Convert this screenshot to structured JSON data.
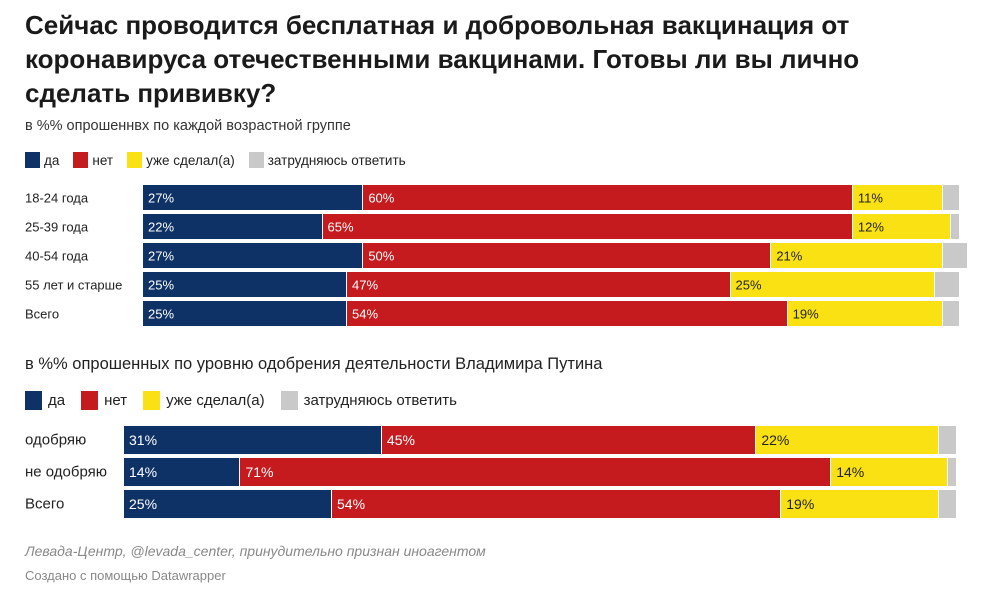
{
  "title": "Сейчас проводится бесплатная и добровольная вакцинация от коронавируса отечественными вакцинами. Готовы ли вы лично сделать прививку?",
  "colors": {
    "yes": "#0f3266",
    "no": "#c51b1e",
    "done": "#fae114",
    "unsure": "#c9c9c9"
  },
  "legend": [
    {
      "key": "yes",
      "label": "да"
    },
    {
      "key": "no",
      "label": "нет"
    },
    {
      "key": "done",
      "label": "уже сделал(а)"
    },
    {
      "key": "unsure",
      "label": "затрудняюсь ответить"
    }
  ],
  "chart_data": [
    {
      "type": "bar",
      "orientation": "horizontal",
      "stacked": true,
      "subtitle": "в %% опрошеннвх по каждой возрастной группе",
      "categories": [
        "18-24 года",
        "25-39 года",
        "40-54 года",
        "55 лет и старше",
        "Всего"
      ],
      "series": [
        {
          "name": "да",
          "values": [
            27,
            22,
            27,
            25,
            25
          ]
        },
        {
          "name": "нет",
          "values": [
            60,
            65,
            50,
            47,
            54
          ]
        },
        {
          "name": "уже сделал(а)",
          "values": [
            11,
            12,
            21,
            25,
            19
          ]
        },
        {
          "name": "затрудняюсь ответить",
          "values": [
            2,
            1,
            3,
            3,
            2
          ]
        }
      ],
      "value_labels": [
        [
          "27%",
          "60%",
          "11%",
          ""
        ],
        [
          "22%",
          "65%",
          "12%",
          ""
        ],
        [
          "27%",
          "50%",
          "21%",
          ""
        ],
        [
          "25%",
          "47%",
          "25%",
          ""
        ],
        [
          "25%",
          "54%",
          "19%",
          ""
        ]
      ],
      "xlim": [
        0,
        100
      ]
    },
    {
      "type": "bar",
      "orientation": "horizontal",
      "stacked": true,
      "subtitle": "в %% опрошенных по уровню одобрения деятельности Владимира Путина",
      "categories": [
        "одобряю",
        "не одобряю",
        "Всего"
      ],
      "series": [
        {
          "name": "да",
          "values": [
            31,
            14,
            25
          ]
        },
        {
          "name": "нет",
          "values": [
            45,
            71,
            54
          ]
        },
        {
          "name": "уже сделал(а)",
          "values": [
            22,
            14,
            19
          ]
        },
        {
          "name": "затрудняюсь ответить",
          "values": [
            2,
            1,
            2
          ]
        }
      ],
      "value_labels": [
        [
          "31%",
          "45%",
          "22%",
          ""
        ],
        [
          "14%",
          "71%",
          "14%",
          ""
        ],
        [
          "25%",
          "54%",
          "19%",
          ""
        ]
      ],
      "xlim": [
        0,
        100
      ]
    }
  ],
  "source": "Левада-Центр, @levada_center, принудительно признан иноагентом",
  "credit": "Создано с помощью Datawrapper"
}
